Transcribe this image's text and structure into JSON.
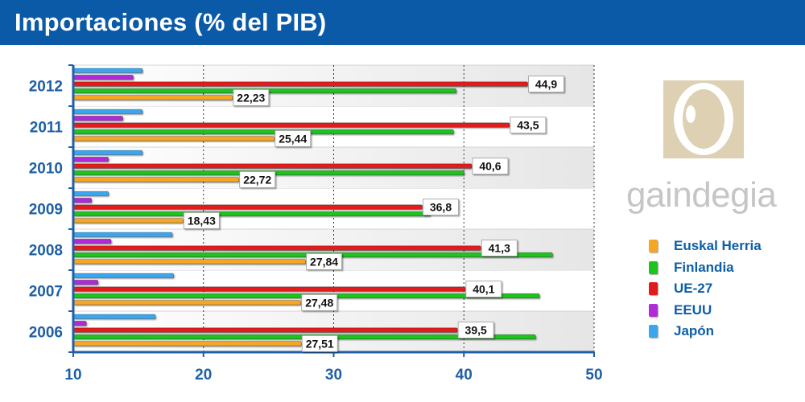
{
  "header": {
    "title": "Importaciones (% del PIB)"
  },
  "logo": {
    "text": "gaindegia"
  },
  "colors": {
    "title_bar": "#0a5aa8",
    "axis": "#1f5fa6",
    "tick_label": "#1f5fa6",
    "Euskal Herria": "#f5a623",
    "Finlandia": "#1ec41e",
    "UE-27": "#e01b1b",
    "EEUU": "#b02cd8",
    "Japón": "#3aa6ee"
  },
  "chart_data": {
    "type": "bar",
    "orientation": "horizontal",
    "title": "Importaciones (% del PIB)",
    "categories": [
      "2006",
      "2007",
      "2008",
      "2009",
      "2010",
      "2011",
      "2012"
    ],
    "xlim": [
      10,
      50
    ],
    "xticks": [
      10,
      20,
      30,
      40,
      50
    ],
    "grid": true,
    "legend_position": "right",
    "series": [
      {
        "name": "Euskal Herria",
        "values": [
          27.51,
          27.48,
          27.84,
          18.43,
          22.72,
          25.44,
          22.23
        ],
        "labels": [
          "27,51",
          "27,48",
          "27,84",
          "18,43",
          "22,72",
          "25,44",
          "22,23"
        ]
      },
      {
        "name": "Finlandia",
        "values": [
          45.5,
          45.8,
          46.8,
          37.4,
          40.0,
          39.2,
          39.4
        ]
      },
      {
        "name": "UE-27",
        "values": [
          39.5,
          40.1,
          41.3,
          36.8,
          40.6,
          43.5,
          44.9
        ],
        "labels": [
          "39,5",
          "40,1",
          "41,3",
          "36,8",
          "40,6",
          "43,5",
          "44,9"
        ]
      },
      {
        "name": "EEUU",
        "values": [
          11.0,
          11.9,
          12.9,
          11.4,
          12.7,
          13.8,
          14.6
        ]
      },
      {
        "name": "Japón",
        "values": [
          16.3,
          17.7,
          17.6,
          12.7,
          15.3,
          15.3,
          15.3
        ]
      }
    ]
  }
}
